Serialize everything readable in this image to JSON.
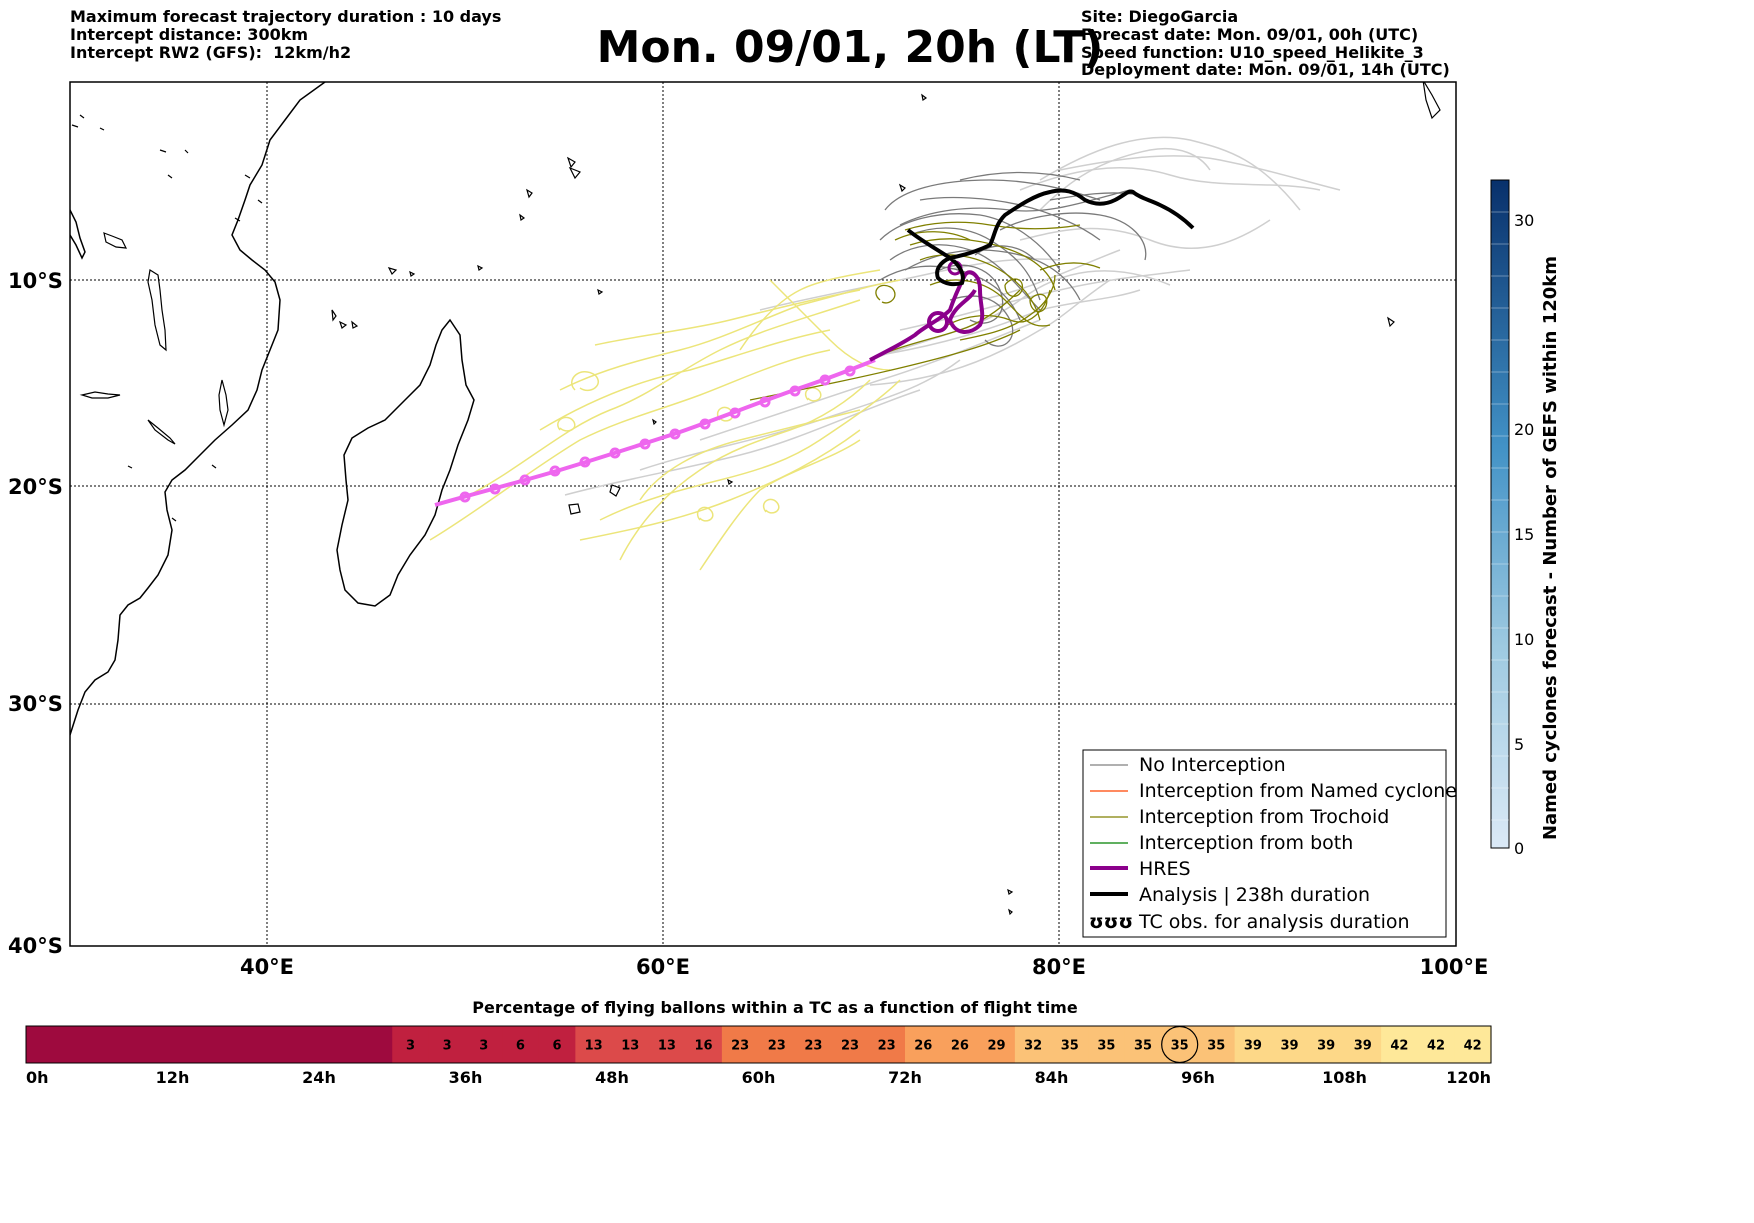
{
  "header_left": {
    "line1": "Maximum forecast trajectory duration : 10 days",
    "line2": "Intercept distance: 300km",
    "line3": "Intercept RW2 (GFS):  12km/h2"
  },
  "title": "Mon. 09/01, 20h (LT)",
  "header_right": {
    "line1": "Site: DiegoGarcia",
    "line2": "Forecast date: Mon. 09/01, 00h (UTC)",
    "line3": "Speed function: U10_speed_Helikite_3",
    "line4": "Deployment date: Mon. 09/01, 14h (UTC)"
  },
  "map": {
    "lon_range": [
      30,
      100
    ],
    "lat_range": [
      -40,
      3
    ],
    "lat_labels": [
      "10°S",
      "20°S",
      "30°S",
      "40°S"
    ],
    "lon_labels": [
      "40°E",
      "60°E",
      "80°E",
      "100°E"
    ],
    "colors": {
      "no_interception": "#808080",
      "named_cyclone": "#ff4500",
      "trochoid": "#808000",
      "both": "#008000",
      "hres": "#8b008b",
      "analysis": "#000000",
      "gefs_light": "#c8c8c8",
      "gefs_yellow": "#e8e070",
      "hres_pink": "#ee66ee"
    }
  },
  "legend": {
    "items": [
      {
        "label": "No Interception",
        "color": "#808080",
        "style": "thin"
      },
      {
        "label": "Interception from Named cyclone",
        "color": "#ff4500",
        "style": "thin"
      },
      {
        "label": "Interception from Trochoid",
        "color": "#808000",
        "style": "thin"
      },
      {
        "label": "Interception from both",
        "color": "#008000",
        "style": "thin"
      },
      {
        "label": "HRES",
        "color": "#8b008b",
        "style": "thick"
      },
      {
        "label": "Analysis | 238h duration",
        "color": "#000000",
        "style": "thick"
      },
      {
        "label": "TC obs. for analysis duration",
        "color": "#000000",
        "style": "symbol",
        "symbol": "ʊʊʊ"
      }
    ]
  },
  "colorbar": {
    "label": "Named cyclones forecast - Number of GEFS within 120km",
    "ticks": [
      "0",
      "5",
      "10",
      "15",
      "20",
      "30"
    ],
    "color_low": "#dbe9f6",
    "color_high": "#08306b"
  },
  "percentage_bar": {
    "title": "Percentage of flying ballons within a TC as a function of flight time",
    "values": [
      "",
      "",
      "",
      "",
      "",
      "",
      "",
      "",
      "",
      "",
      "3",
      "3",
      "3",
      "6",
      "6",
      "13",
      "13",
      "13",
      "16",
      "23",
      "23",
      "23",
      "23",
      "23",
      "26",
      "26",
      "29",
      "32",
      "35",
      "35",
      "35",
      "35",
      "35",
      "39",
      "39",
      "39",
      "39",
      "42",
      "42",
      "42"
    ],
    "highlighted_index": 31,
    "time_labels": [
      "0h",
      "12h",
      "24h",
      "36h",
      "48h",
      "60h",
      "72h",
      "84h",
      "96h",
      "108h",
      "120h"
    ]
  }
}
